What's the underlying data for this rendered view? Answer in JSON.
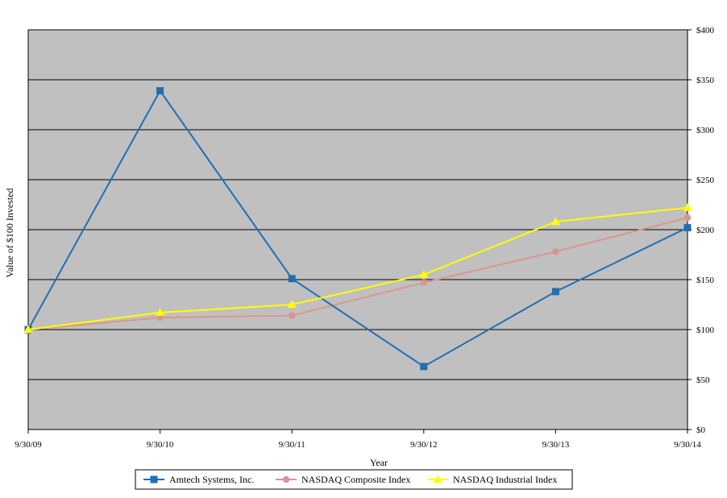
{
  "chart_data": {
    "type": "line",
    "title": "",
    "xlabel": "Year",
    "ylabel": "Value of $100 Invested",
    "categories": [
      "9/30/09",
      "9/30/10",
      "9/30/11",
      "9/30/12",
      "9/30/13",
      "9/30/14"
    ],
    "ylim": [
      0,
      400
    ],
    "y_ticks": [
      "$0",
      "$50",
      "$100",
      "$150",
      "$200",
      "$250",
      "$300",
      "$350",
      "$400"
    ],
    "y_axis_side": "right",
    "grid": true,
    "legend_position": "bottom",
    "plot_background": "#C0C0C0",
    "series": [
      {
        "name": "Amtech Systems, Inc.",
        "values": [
          100,
          339,
          151,
          63,
          138,
          202
        ],
        "color": "#1F6FB4",
        "marker": "square"
      },
      {
        "name": "NASDAQ Composite Index",
        "values": [
          100,
          112,
          114,
          147,
          178,
          212
        ],
        "color": "#D9968F",
        "marker": "circle"
      },
      {
        "name": "NASDAQ Industrial Index",
        "values": [
          100,
          117,
          125,
          155,
          208,
          222
        ],
        "color": "#FFFF00",
        "marker": "triangle"
      }
    ]
  }
}
